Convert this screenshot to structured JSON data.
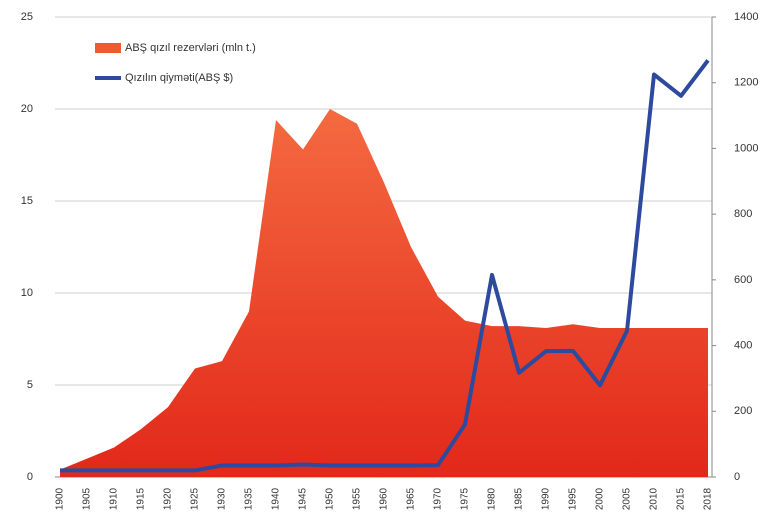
{
  "chart_data": {
    "type": "area_line",
    "categories": [
      "1900",
      "1905",
      "1910",
      "1915",
      "1920",
      "1925",
      "1930",
      "1935",
      "1940",
      "1945",
      "1950",
      "1955",
      "1960",
      "1965",
      "1970",
      "1975",
      "1980",
      "1985",
      "1990",
      "1995",
      "2000",
      "2005",
      "2010",
      "2015",
      "2018"
    ],
    "series": [
      {
        "name": "ABŞ qızıl rezervləri (mln t.)",
        "color": "#f05a32",
        "type": "area",
        "values": [
          0.4,
          1.0,
          1.6,
          2.6,
          3.8,
          5.9,
          6.3,
          9.0,
          19.4,
          17.8,
          20.0,
          19.2,
          16.0,
          12.5,
          9.8,
          8.5,
          8.2,
          8.2,
          8.1,
          8.3,
          8.1,
          8.1,
          8.1,
          8.1,
          8.1
        ]
      },
      {
        "name": "Qızılın qiyməti(ABŞ $)",
        "color": "#2e4a9e",
        "type": "line",
        "axis": "y2",
        "values": [
          20,
          20,
          20,
          20,
          20,
          20,
          35,
          35,
          35,
          38,
          35,
          35,
          35,
          35,
          36,
          160,
          615,
          317,
          383,
          384,
          279,
          445,
          1225,
          1160,
          1268
        ]
      }
    ],
    "ylim": [
      0,
      25
    ],
    "yticks": [
      0,
      5,
      10,
      15,
      20,
      25
    ],
    "y2lim": [
      0,
      1400
    ],
    "y2ticks": [
      0,
      200,
      400,
      600,
      800,
      1000,
      1200,
      1400
    ],
    "grid": true,
    "legend": "top-left"
  }
}
